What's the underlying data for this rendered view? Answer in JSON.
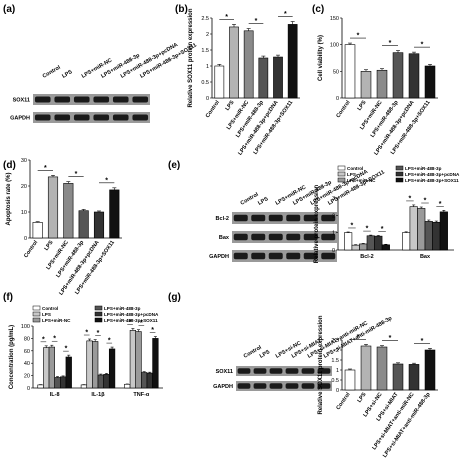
{
  "panels": {
    "a": {
      "letter": "(a)",
      "lanes": [
        "Control",
        "LPS",
        "LPS+miR-NC",
        "LPS+miR-488-3p",
        "LPS+miR-488-3p+pcDNA",
        "LPS+miR-488-3p+SOX11"
      ],
      "rows": [
        "SOX11",
        "GAPDH"
      ]
    },
    "e_blot": {
      "lanes": [
        "Control",
        "LPS",
        "LPS+miR-NC",
        "LPS+miR-488-3p",
        "LPS+miR-488-3p+pcDNA",
        "LPS+miR-488-3p+SOX11"
      ],
      "rows": [
        "Bcl-2",
        "Bax",
        "GAPDH"
      ]
    },
    "g_blot": {
      "lanes": [
        "Control",
        "LPS",
        "LPS+si-NC",
        "LPS+si-MIAT",
        "LPS+si-MIAT+anti-miR-NC",
        "LPS+si-MIAT+anti-miR-488-3p"
      ],
      "rows": [
        "SOX11",
        "GAPDH"
      ]
    }
  },
  "chart_data": [
    {
      "id": "b",
      "letter": "(b)",
      "type": "bar",
      "ylabel": "Relative SOX11 protein expression",
      "ylim": [
        0,
        2.5
      ],
      "yticks": [
        0,
        0.5,
        1.0,
        1.5,
        2.0,
        2.5
      ],
      "categories": [
        "Control",
        "LPS",
        "LPS+miR-NC",
        "LPS+miR-488-3p",
        "LPS+miR-488-3p+pcDNA",
        "LPS+miR-488-3p+SOX11"
      ],
      "values": [
        1.0,
        2.22,
        2.1,
        1.25,
        1.28,
        2.3
      ],
      "errors": [
        0.05,
        0.08,
        0.07,
        0.06,
        0.06,
        0.09
      ],
      "colors": [
        "#ffffff",
        "#b3b3b3",
        "#8a8a8a",
        "#555555",
        "#333333",
        "#111111"
      ],
      "sig": [
        [
          0,
          1
        ],
        [
          2,
          3
        ],
        [
          4,
          5
        ]
      ]
    },
    {
      "id": "c",
      "letter": "(c)",
      "type": "bar",
      "ylabel": "Cell viability (%)",
      "ylim": [
        0,
        150
      ],
      "yticks": [
        0,
        50,
        100,
        150
      ],
      "categories": [
        "Control",
        "LPS",
        "LPS+miR-NC",
        "LPS+miR-488-3p",
        "LPS+miR-488-3p+pcDNA",
        "LPS+miR-488-3p+SOX11"
      ],
      "values": [
        100,
        50,
        52,
        85,
        83,
        60
      ],
      "errors": [
        3,
        3,
        3,
        4,
        3,
        3
      ],
      "colors": [
        "#ffffff",
        "#b3b3b3",
        "#8a8a8a",
        "#555555",
        "#333333",
        "#111111"
      ],
      "sig": [
        [
          0,
          1
        ],
        [
          2,
          3
        ],
        [
          4,
          5
        ]
      ]
    },
    {
      "id": "d",
      "letter": "(d)",
      "type": "bar",
      "ylabel": "Apoptosis rate (%)",
      "ylim": [
        0,
        30
      ],
      "yticks": [
        0,
        10,
        20,
        30
      ],
      "categories": [
        "Control",
        "LPS",
        "LPS+miR-NC",
        "LPS+miR-488-3p",
        "LPS+miR-488-3p+pcDNA",
        "LPS+miR-488-3p+SOX11"
      ],
      "values": [
        6,
        23.5,
        21,
        10.5,
        10,
        18.5
      ],
      "errors": [
        0.3,
        0.6,
        0.7,
        0.5,
        0.4,
        0.8
      ],
      "colors": [
        "#ffffff",
        "#b3b3b3",
        "#8a8a8a",
        "#555555",
        "#333333",
        "#111111"
      ],
      "sig": [
        [
          0,
          1
        ],
        [
          2,
          3
        ],
        [
          4,
          5
        ]
      ]
    },
    {
      "id": "e",
      "letter": "(e)",
      "type": "bar",
      "ylabel": "Relative protein expression",
      "ylim": [
        0,
        3
      ],
      "yticks": [
        0,
        1,
        2,
        3
      ],
      "groups": [
        "Bcl-2",
        "Bax"
      ],
      "legend": [
        "Control",
        "LPS",
        "LPS+miR-NC",
        "LPS+miR-488-3p",
        "LPS+miR-488-3p+pcDNA",
        "LPS+miR-488-3p+SOX11"
      ],
      "series": [
        {
          "values": [
            1.0,
            1.0
          ],
          "errors": [
            0.04,
            0.05
          ]
        },
        {
          "values": [
            0.28,
            2.5
          ],
          "errors": [
            0.03,
            0.1
          ]
        },
        {
          "values": [
            0.35,
            2.4
          ],
          "errors": [
            0.03,
            0.08
          ]
        },
        {
          "values": [
            0.82,
            1.65
          ],
          "errors": [
            0.04,
            0.08
          ]
        },
        {
          "values": [
            0.8,
            1.6
          ],
          "errors": [
            0.04,
            0.07
          ]
        },
        {
          "values": [
            0.3,
            2.2
          ],
          "errors": [
            0.03,
            0.09
          ]
        }
      ],
      "colors": [
        "#ffffff",
        "#c8c8c8",
        "#9a9a9a",
        "#555555",
        "#333333",
        "#111111"
      ],
      "sig": [
        [
          0,
          1
        ],
        [
          2,
          3
        ],
        [
          4,
          5
        ]
      ]
    },
    {
      "id": "f",
      "letter": "(f)",
      "type": "bar",
      "ylabel": "Concentration (pg/mL)",
      "ylim": [
        0,
        100
      ],
      "yticks": [
        0,
        20,
        40,
        60,
        80,
        100
      ],
      "groups": [
        "IL-8",
        "IL-1β",
        "TNF-α"
      ],
      "legend": [
        "Control",
        "LPS",
        "LPS+miR-NC",
        "LPS+miR-488-3p",
        "LPS+miR-488-3p+pcDNA",
        "LPS+miR-488-3p+SOX11"
      ],
      "series": [
        {
          "values": [
            5,
            5,
            6
          ],
          "errors": [
            0.5,
            0.5,
            0.5
          ]
        },
        {
          "values": [
            65,
            76,
            93
          ],
          "errors": [
            3,
            3,
            3
          ]
        },
        {
          "values": [
            66,
            75,
            91
          ],
          "errors": [
            3,
            3,
            3
          ]
        },
        {
          "values": [
            17,
            21,
            25
          ],
          "errors": [
            1.5,
            1.5,
            1.5
          ]
        },
        {
          "values": [
            18,
            22,
            24
          ],
          "errors": [
            1.5,
            1.5,
            1.5
          ]
        },
        {
          "values": [
            50,
            63,
            80
          ],
          "errors": [
            3,
            3,
            3
          ]
        }
      ],
      "colors": [
        "#ffffff",
        "#c8c8c8",
        "#9a9a9a",
        "#555555",
        "#333333",
        "#111111"
      ],
      "sig": [
        [
          0,
          1
        ],
        [
          2,
          3
        ],
        [
          4,
          5
        ]
      ]
    },
    {
      "id": "g",
      "letter": "(g)",
      "type": "bar",
      "ylabel": "Relative SOX11 protein expression",
      "ylim": [
        0,
        2.5
      ],
      "yticks": [
        0,
        0.5,
        1.0,
        1.5,
        2.0,
        2.5
      ],
      "categories": [
        "Control",
        "LPS",
        "LPS+si-NC",
        "LPS+si-MIAT",
        "LPS+si-MIAT+anti-miR-NC",
        "LPS+si-MIAT+anti-miR-488-3p"
      ],
      "values": [
        1.0,
        2.2,
        2.15,
        1.3,
        1.28,
        2.0
      ],
      "errors": [
        0.05,
        0.08,
        0.07,
        0.06,
        0.06,
        0.08
      ],
      "colors": [
        "#ffffff",
        "#b3b3b3",
        "#8a8a8a",
        "#555555",
        "#333333",
        "#111111"
      ],
      "sig": [
        [
          0,
          1
        ],
        [
          2,
          3
        ],
        [
          4,
          5
        ]
      ]
    }
  ]
}
